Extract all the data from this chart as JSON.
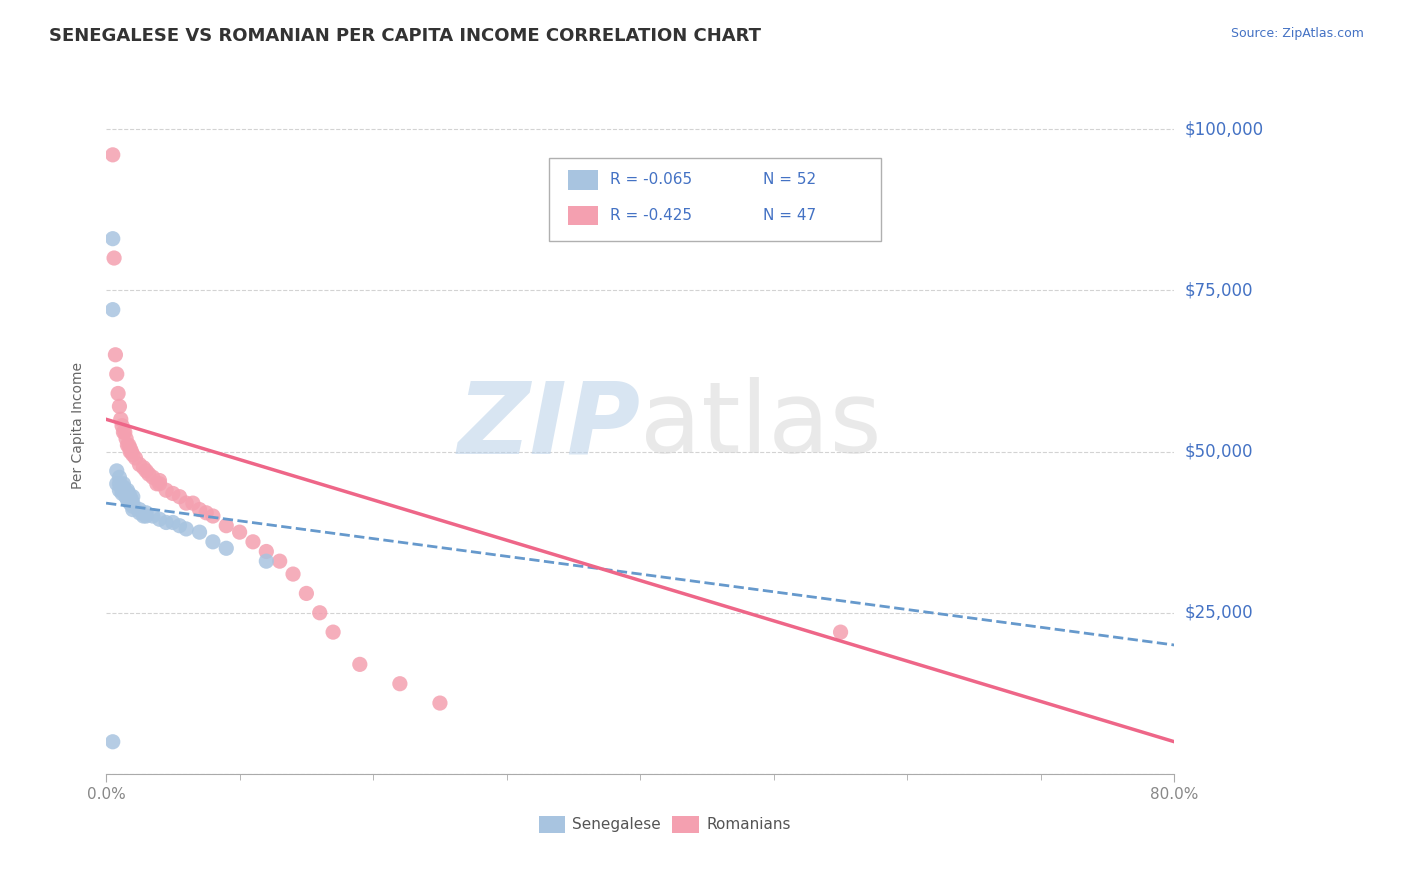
{
  "title": "SENEGALESE VS ROMANIAN PER CAPITA INCOME CORRELATION CHART",
  "source": "Source: ZipAtlas.com",
  "ylabel": "Per Capita Income",
  "yticks": [
    0,
    25000,
    50000,
    75000,
    100000
  ],
  "ytick_labels": [
    "",
    "$25,000",
    "$50,000",
    "$75,000",
    "$100,000"
  ],
  "xlim": [
    0.0,
    0.8
  ],
  "ylim": [
    0,
    108000
  ],
  "background_color": "#ffffff",
  "grid_color": "#c8c8c8",
  "title_color": "#333333",
  "axis_label_color": "#4472c4",
  "source_color": "#4472c4",
  "legend_R1": "R = -0.065",
  "legend_N1": "N = 52",
  "legend_R2": "R = -0.425",
  "legend_N2": "N = 47",
  "senegalese_color": "#a8c4e0",
  "romanian_color": "#f4a0b0",
  "senegalese_line_color": "#6699cc",
  "romanian_line_color": "#ee6688",
  "senegalese_x": [
    0.005,
    0.005,
    0.008,
    0.008,
    0.01,
    0.01,
    0.01,
    0.012,
    0.012,
    0.012,
    0.013,
    0.013,
    0.014,
    0.014,
    0.015,
    0.015,
    0.015,
    0.015,
    0.016,
    0.016,
    0.016,
    0.016,
    0.017,
    0.017,
    0.017,
    0.018,
    0.018,
    0.018,
    0.018,
    0.019,
    0.019,
    0.019,
    0.02,
    0.02,
    0.02,
    0.02,
    0.025,
    0.025,
    0.028,
    0.03,
    0.03,
    0.035,
    0.04,
    0.045,
    0.05,
    0.055,
    0.06,
    0.07,
    0.08,
    0.09,
    0.005,
    0.12
  ],
  "senegalese_y": [
    83000,
    72000,
    47000,
    45000,
    46000,
    45000,
    44000,
    44500,
    44000,
    43500,
    45000,
    44500,
    44000,
    44000,
    43500,
    43500,
    43000,
    43000,
    44000,
    43500,
    43000,
    42500,
    43500,
    43000,
    42500,
    43000,
    42500,
    42000,
    42000,
    42500,
    42000,
    42000,
    43000,
    42000,
    41500,
    41000,
    41000,
    40500,
    40000,
    40500,
    40000,
    40000,
    39500,
    39000,
    39000,
    38500,
    38000,
    37500,
    36000,
    35000,
    5000,
    33000
  ],
  "romanian_x": [
    0.005,
    0.006,
    0.007,
    0.008,
    0.009,
    0.01,
    0.011,
    0.012,
    0.013,
    0.014,
    0.015,
    0.016,
    0.017,
    0.018,
    0.018,
    0.019,
    0.02,
    0.022,
    0.025,
    0.028,
    0.03,
    0.032,
    0.035,
    0.038,
    0.04,
    0.04,
    0.045,
    0.05,
    0.055,
    0.06,
    0.065,
    0.07,
    0.075,
    0.08,
    0.09,
    0.1,
    0.11,
    0.12,
    0.13,
    0.14,
    0.15,
    0.16,
    0.17,
    0.19,
    0.22,
    0.25,
    0.55
  ],
  "romanian_y": [
    96000,
    80000,
    65000,
    62000,
    59000,
    57000,
    55000,
    54000,
    53000,
    53000,
    52000,
    51000,
    51000,
    50500,
    50000,
    50000,
    49500,
    49000,
    48000,
    47500,
    47000,
    46500,
    46000,
    45000,
    45000,
    45500,
    44000,
    43500,
    43000,
    42000,
    42000,
    41000,
    40500,
    40000,
    38500,
    37500,
    36000,
    34500,
    33000,
    31000,
    28000,
    25000,
    22000,
    17000,
    14000,
    11000,
    22000
  ],
  "sen_trend_x": [
    0.0,
    0.8
  ],
  "sen_trend_y": [
    42000,
    20000
  ],
  "rom_trend_x": [
    0.0,
    0.8
  ],
  "rom_trend_y": [
    55000,
    5000
  ]
}
